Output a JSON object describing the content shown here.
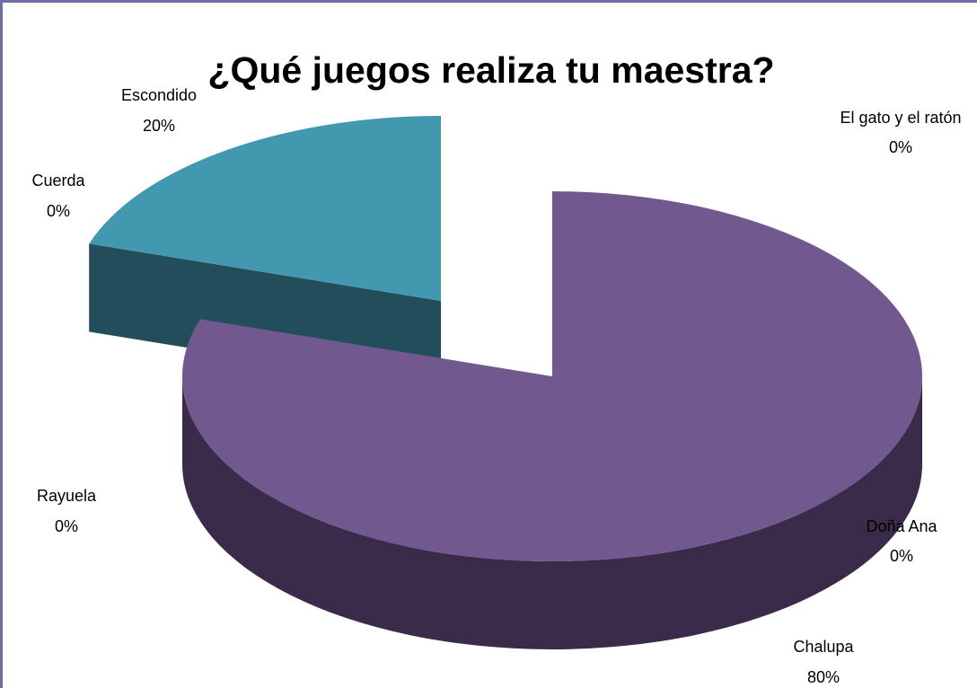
{
  "chart_data": {
    "type": "pie",
    "title": "¿Qué juegos realiza tu maestra?",
    "slices": [
      {
        "label": "El gato y el ratón",
        "value": 0,
        "pct": "0%",
        "color": "#4a7ebb"
      },
      {
        "label": "Doña Ana",
        "value": 0,
        "pct": "0%",
        "color": "#be4b48"
      },
      {
        "label": "Chalupa",
        "value": 80,
        "pct": "80%",
        "color": "#71588f",
        "side_color": "#3b2b4a"
      },
      {
        "label": "Rayuela",
        "value": 0,
        "pct": "0%",
        "color": "#98b954"
      },
      {
        "label": "Cuerda",
        "value": 0,
        "pct": "0%",
        "color": "#f79646"
      },
      {
        "label": "Escondido",
        "value": 20,
        "pct": "20%",
        "color": "#4198af",
        "side_color": "#234d5a"
      }
    ],
    "legend": "none",
    "style": "3d-exploded"
  }
}
